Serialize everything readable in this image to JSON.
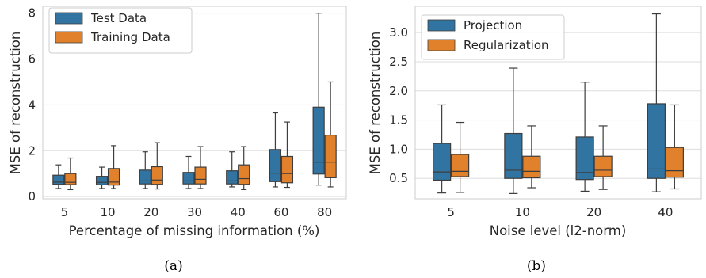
{
  "chart_data": [
    {
      "type": "boxplot",
      "caption": "(a)",
      "xlabel": "Percentage of missing information (%)",
      "ylabel": "MSE of reconstruction",
      "ylim": [
        -0.1,
        8.3
      ],
      "yticks": [
        0,
        2,
        4,
        6,
        8
      ],
      "grid": "horizontal",
      "legend_position": "top-left",
      "categories": [
        "5",
        "10",
        "20",
        "30",
        "40",
        "60",
        "80"
      ],
      "series": [
        {
          "name": "Test Data",
          "color": "#3274a1",
          "boxes": [
            {
              "whisker_low": 0.35,
              "q1": 0.53,
              "median": 0.63,
              "q3": 0.93,
              "whisker_high": 1.38
            },
            {
              "whisker_low": 0.35,
              "q1": 0.51,
              "median": 0.62,
              "q3": 0.88,
              "whisker_high": 1.28
            },
            {
              "whisker_low": 0.35,
              "q1": 0.55,
              "median": 0.68,
              "q3": 1.15,
              "whisker_high": 1.95
            },
            {
              "whisker_low": 0.35,
              "q1": 0.55,
              "median": 0.68,
              "q3": 1.05,
              "whisker_high": 1.75
            },
            {
              "whisker_low": 0.42,
              "q1": 0.55,
              "median": 0.68,
              "q3": 1.12,
              "whisker_high": 1.95
            },
            {
              "whisker_low": 0.42,
              "q1": 0.65,
              "median": 1.02,
              "q3": 2.05,
              "whisker_high": 3.65
            },
            {
              "whisker_low": 0.5,
              "q1": 0.98,
              "median": 1.5,
              "q3": 3.9,
              "whisker_high": 8.0
            }
          ]
        },
        {
          "name": "Training Data",
          "color": "#e1812c",
          "boxes": [
            {
              "whisker_low": 0.3,
              "q1": 0.52,
              "median": 0.62,
              "q3": 1.0,
              "whisker_high": 1.68
            },
            {
              "whisker_low": 0.35,
              "q1": 0.5,
              "median": 0.63,
              "q3": 1.22,
              "whisker_high": 2.22
            },
            {
              "whisker_low": 0.33,
              "q1": 0.53,
              "median": 0.72,
              "q3": 1.3,
              "whisker_high": 2.35
            },
            {
              "whisker_low": 0.35,
              "q1": 0.55,
              "median": 0.75,
              "q3": 1.28,
              "whisker_high": 2.18
            },
            {
              "whisker_low": 0.3,
              "q1": 0.53,
              "median": 0.78,
              "q3": 1.38,
              "whisker_high": 2.18
            },
            {
              "whisker_low": 0.4,
              "q1": 0.6,
              "median": 1.0,
              "q3": 1.75,
              "whisker_high": 3.25
            },
            {
              "whisker_low": 0.42,
              "q1": 0.82,
              "median": 1.5,
              "q3": 2.68,
              "whisker_high": 5.0
            }
          ]
        }
      ]
    },
    {
      "type": "boxplot",
      "caption": "(b)",
      "xlabel": "Noise level (l2-norm)",
      "ylabel": "MSE of reconstruction",
      "ylim": [
        0.15,
        3.45
      ],
      "yticks": [
        0.5,
        1.0,
        1.5,
        2.0,
        2.5,
        3.0
      ],
      "ytick_labels": [
        "0.5",
        "1.0",
        "1.5",
        "2.0",
        "2.5",
        "3.0"
      ],
      "grid": "horizontal",
      "legend_position": "top-left",
      "categories": [
        "5",
        "10",
        "20",
        "40"
      ],
      "series": [
        {
          "name": "Projection",
          "color": "#3274a1",
          "boxes": [
            {
              "whisker_low": 0.25,
              "q1": 0.47,
              "median": 0.61,
              "q3": 1.1,
              "whisker_high": 1.76
            },
            {
              "whisker_low": 0.24,
              "q1": 0.5,
              "median": 0.64,
              "q3": 1.27,
              "whisker_high": 2.39
            },
            {
              "whisker_low": 0.28,
              "q1": 0.48,
              "median": 0.6,
              "q3": 1.21,
              "whisker_high": 2.15
            },
            {
              "whisker_low": 0.27,
              "q1": 0.5,
              "median": 0.66,
              "q3": 1.78,
              "whisker_high": 3.32
            }
          ]
        },
        {
          "name": "Regularization",
          "color": "#e1812c",
          "boxes": [
            {
              "whisker_low": 0.26,
              "q1": 0.53,
              "median": 0.62,
              "q3": 0.91,
              "whisker_high": 1.46
            },
            {
              "whisker_low": 0.34,
              "q1": 0.51,
              "median": 0.62,
              "q3": 0.88,
              "whisker_high": 1.4
            },
            {
              "whisker_low": 0.31,
              "q1": 0.53,
              "median": 0.64,
              "q3": 0.88,
              "whisker_high": 1.4
            },
            {
              "whisker_low": 0.32,
              "q1": 0.52,
              "median": 0.63,
              "q3": 1.03,
              "whisker_high": 1.76
            }
          ]
        }
      ]
    }
  ]
}
